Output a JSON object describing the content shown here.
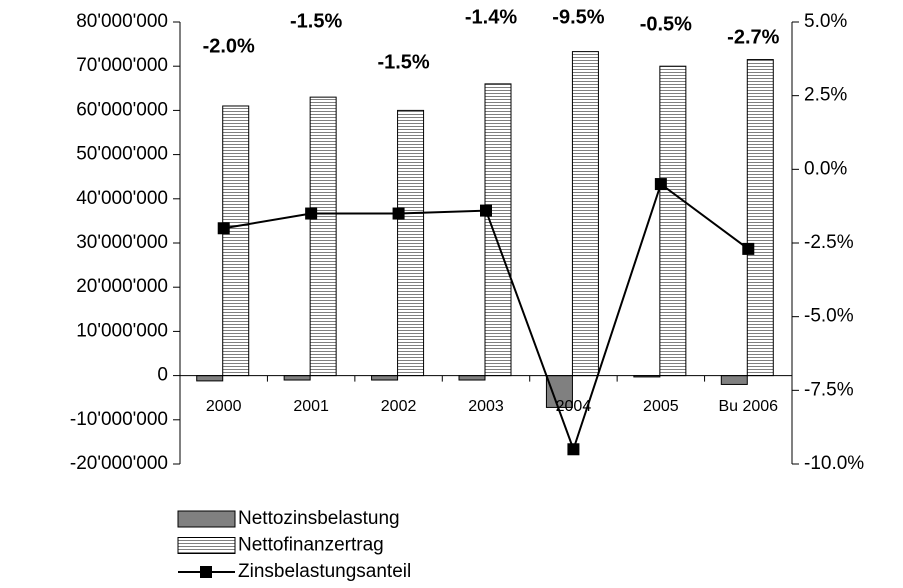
{
  "chart_data": {
    "type": "bar",
    "categories": [
      "2000",
      "2001",
      "2002",
      "2003",
      "2004",
      "2005",
      "Bu 2006"
    ],
    "series": [
      {
        "name": "Nettozinsbelastung",
        "color": "#808080",
        "values": [
          -1200000,
          -1000000,
          -1000000,
          -1000000,
          -7200000,
          -300000,
          -2000000
        ]
      },
      {
        "name": "Nettofinanzertrag",
        "color": "#808080",
        "pattern": "horizontal-stripes",
        "values": [
          61000000,
          63000000,
          60000000,
          66000000,
          73300000,
          70000000,
          71500000
        ]
      },
      {
        "name": "Zinsbelastungsanteil",
        "color": "#000000",
        "type": "line",
        "axis": "y2",
        "values": [
          -2.0,
          -1.5,
          -1.5,
          -1.4,
          -9.5,
          -0.5,
          -2.7
        ],
        "value_labels": [
          "-2.0%",
          "-1.5%",
          "-1.5%",
          "-1.4%",
          "-9.5%",
          "-0.5%",
          "-2.7%"
        ]
      }
    ],
    "ylim": [
      -20000000,
      80000000
    ],
    "yticks": [
      {
        "value": -20000000,
        "label": "-20'000'000"
      },
      {
        "value": -10000000,
        "label": "-10'000'000"
      },
      0,
      {
        "value": 10000000,
        "label": "10'000'000"
      },
      {
        "value": 20000000,
        "label": "20'000'000"
      },
      {
        "value": 30000000,
        "label": "30'000'000"
      },
      {
        "value": 40000000,
        "label": "40'000'000"
      },
      {
        "value": 50000000,
        "label": "50'000'000"
      },
      {
        "value": 60000000,
        "label": "60'000'000"
      },
      {
        "value": 70000000,
        "label": "70'000'000"
      },
      {
        "value": 80000000,
        "label": "80'000'000"
      }
    ],
    "y2lim": [
      -10,
      5
    ],
    "y2ticks": [
      {
        "value": -10,
        "label": "-10.0%"
      },
      {
        "value": -7.5,
        "label": "-7.5%"
      },
      {
        "value": -5,
        "label": "-5.0%"
      },
      {
        "value": -2.5,
        "label": "-2.5%"
      },
      {
        "value": 0,
        "label": "0.0%"
      },
      {
        "value": 2.5,
        "label": "2.5%"
      },
      {
        "value": 5,
        "label": "5.0%"
      }
    ],
    "grid": false,
    "legend": "bottom-left"
  }
}
